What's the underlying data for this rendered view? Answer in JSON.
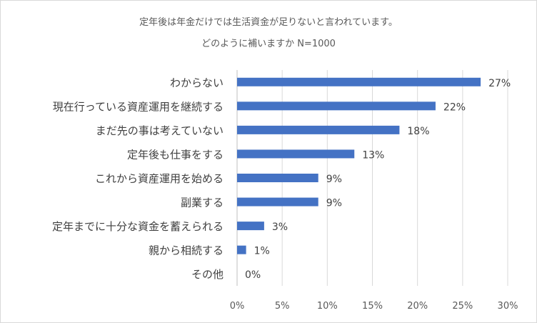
{
  "chart_data": {
    "type": "bar",
    "orientation": "horizontal",
    "title_lines": [
      "定年後は年金だけでは生活資金が足りないと言われています。",
      "どのように補いますか N=1000"
    ],
    "categories": [
      "わからない",
      "現在行っている資産運用を継続する",
      "まだ先の事は考えていない",
      "定年後も仕事をする",
      "これから資産運用を始める",
      "副業する",
      "定年までに十分な資金を蓄えられる",
      "親から相続する",
      "その他"
    ],
    "values": [
      27,
      22,
      18,
      13,
      9,
      9,
      3,
      1,
      0
    ],
    "data_labels": [
      "27%",
      "22%",
      "18%",
      "13%",
      "9%",
      "9%",
      "3%",
      "1%",
      "0%"
    ],
    "x_ticks": [
      0,
      5,
      10,
      15,
      20,
      25,
      30
    ],
    "x_tick_labels": [
      "0%",
      "5%",
      "10%",
      "15%",
      "20%",
      "25%",
      "30%"
    ],
    "xlim": [
      0,
      30
    ],
    "grid": true,
    "bar_color": "#4472c4",
    "grid_color": "#d9d9d9"
  }
}
